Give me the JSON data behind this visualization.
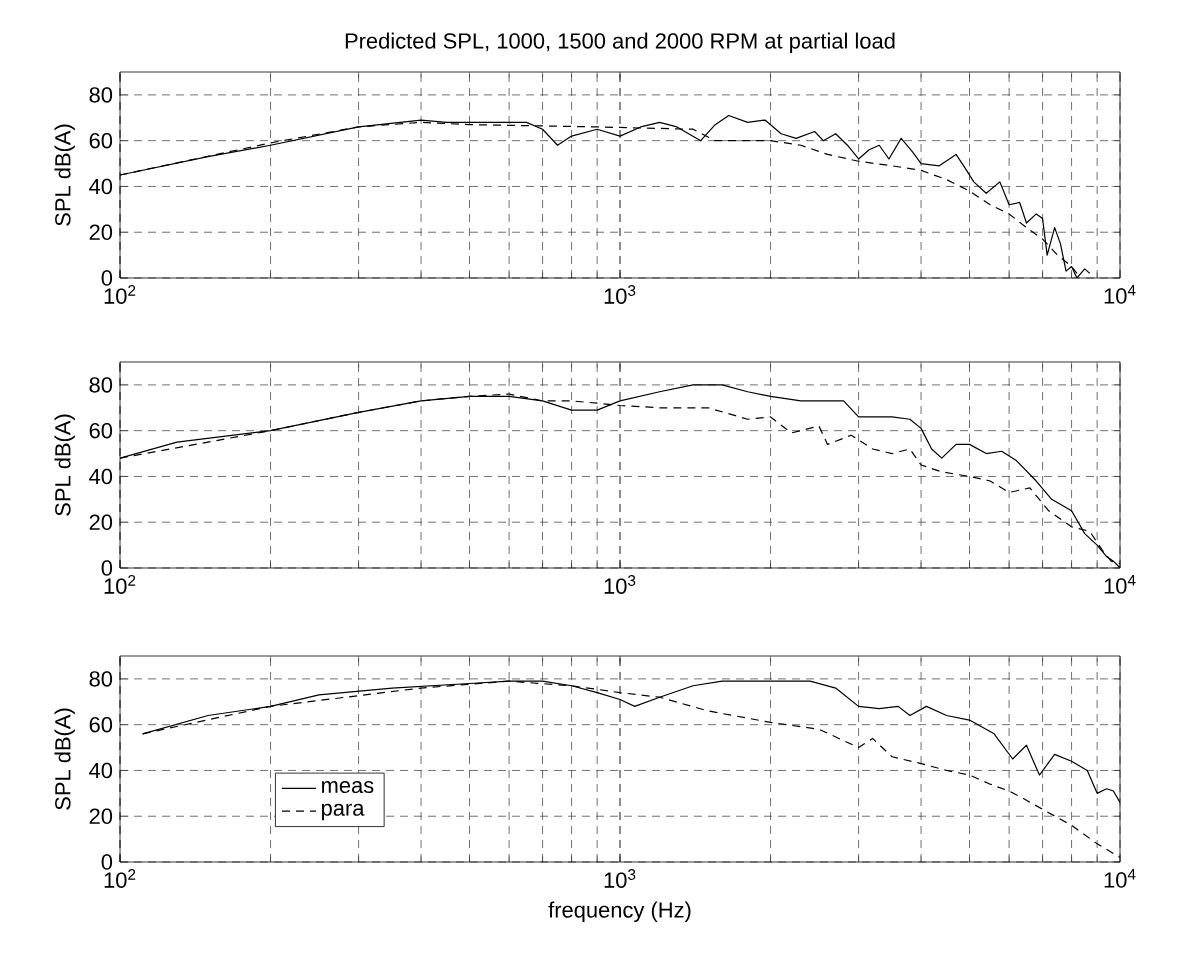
{
  "chart_data": [
    {
      "type": "line",
      "title": "Predicted SPL, 1000, 1500 and 2000 RPM at partial load",
      "ylabel": "SPL dB(A)",
      "log": "x",
      "grid": true,
      "xlim": [
        100,
        10000
      ],
      "ylim": [
        0,
        90
      ],
      "xticks": [
        {
          "value": 100,
          "label": "10$^{2}$"
        },
        {
          "value": 1000,
          "label": "10$^{3}$"
        },
        {
          "value": 10000,
          "label": "10$^{4}$"
        }
      ],
      "yticks": [
        0,
        20,
        40,
        60,
        80
      ],
      "series": [
        {
          "color": "#000000",
          "line_style": "solid",
          "x": [
            100,
            150,
            200,
            300,
            400,
            450,
            650,
            700,
            750,
            800,
            900,
            1000,
            1100,
            1200,
            1300,
            1450,
            1550,
            1650,
            1800,
            1950,
            2100,
            2250,
            2450,
            2550,
            2700,
            2850,
            3000,
            3150,
            3300,
            3450,
            3650,
            3850,
            4000,
            4350,
            4700,
            4900,
            5100,
            5400,
            5750,
            6000,
            6300,
            6500,
            6800,
            7000,
            7150,
            7400,
            7600,
            7800,
            8000,
            8200,
            8500,
            8700
          ],
          "values": [
            45,
            53,
            58,
            66,
            69,
            68,
            68,
            65,
            58,
            62,
            65,
            62,
            66,
            68,
            66,
            60,
            67,
            71,
            68,
            69,
            63,
            61,
            64,
            60,
            63,
            58,
            52,
            56,
            58,
            52,
            61,
            55,
            50,
            49,
            54,
            48,
            42,
            37,
            42,
            32,
            33,
            24,
            28,
            26,
            10,
            22,
            15,
            3,
            5,
            0,
            4,
            2
          ]
        },
        {
          "color": "#000000",
          "line_style": "dashed",
          "x": [
            100,
            200,
            300,
            400,
            500,
            900,
            1400,
            1550,
            2000,
            2300,
            2600,
            3000,
            3500,
            4000,
            4500,
            5000,
            5500,
            6000,
            6500,
            7000,
            7500,
            8000,
            8200
          ],
          "values": [
            45,
            59,
            66,
            68,
            67,
            66,
            65,
            60,
            60,
            58,
            54,
            51,
            49,
            47,
            43,
            38,
            32,
            28,
            22,
            17,
            10,
            5,
            2
          ]
        }
      ]
    },
    {
      "type": "line",
      "ylabel": "SPL dB(A)",
      "log": "x",
      "grid": true,
      "xlim": [
        100,
        10000
      ],
      "ylim": [
        0,
        90
      ],
      "xticks": [
        {
          "value": 100,
          "label": "10$^{2}$"
        },
        {
          "value": 1000,
          "label": "10$^{3}$"
        },
        {
          "value": 10000,
          "label": "10$^{4}$"
        }
      ],
      "yticks": [
        0,
        20,
        40,
        60,
        80
      ],
      "series": [
        {
          "color": "#000000",
          "line_style": "solid",
          "x": [
            100,
            130,
            200,
            300,
            400,
            500,
            600,
            700,
            800,
            900,
            1000,
            1200,
            1400,
            1600,
            1800,
            2000,
            2300,
            2800,
            3000,
            3500,
            3800,
            4000,
            4200,
            4400,
            4700,
            5000,
            5400,
            5800,
            6200,
            6800,
            7300,
            8000,
            8500,
            9000,
            9400,
            9700,
            10000
          ],
          "values": [
            48,
            55,
            60,
            68,
            73,
            75,
            75,
            73,
            69,
            69,
            73,
            77,
            80,
            80,
            77,
            75,
            73,
            73,
            66,
            66,
            65,
            61,
            52,
            48,
            54,
            54,
            50,
            51,
            47,
            38,
            30,
            25,
            15,
            10,
            5,
            3,
            0
          ]
        },
        {
          "color": "#000000",
          "line_style": "dashed",
          "x": [
            100,
            200,
            300,
            400,
            500,
            600,
            700,
            800,
            900,
            1000,
            1200,
            1500,
            1800,
            2000,
            2200,
            2500,
            2600,
            2900,
            3200,
            3500,
            3800,
            4000,
            4400,
            5000,
            5500,
            6000,
            6600,
            7200,
            8000,
            8700,
            9200,
            9600,
            10000
          ],
          "values": [
            48,
            60,
            68,
            73,
            75,
            76,
            73,
            73,
            72,
            71,
            70,
            70,
            65,
            66,
            59,
            62,
            54,
            58,
            52,
            50,
            52,
            45,
            42,
            40,
            38,
            33,
            35,
            25,
            18,
            16,
            8,
            3,
            2
          ]
        }
      ]
    },
    {
      "type": "line",
      "ylabel": "SPL dB(A)",
      "xlabel": "frequency (Hz)",
      "log": "x",
      "grid": true,
      "legend": "left",
      "xlim": [
        100,
        10000
      ],
      "ylim": [
        0,
        90
      ],
      "xticks": [
        {
          "value": 100,
          "label": "10$^{2}$"
        },
        {
          "value": 1000,
          "label": "10$^{3}$"
        },
        {
          "value": 10000,
          "label": "10$^{4}$"
        }
      ],
      "yticks": [
        0,
        20,
        40,
        60,
        80
      ],
      "series": [
        {
          "name": "meas",
          "color": "#000000",
          "line_style": "solid",
          "x": [
            111,
            150,
            200,
            250,
            350,
            500,
            600,
            700,
            800,
            900,
            1000,
            1070,
            1200,
            1400,
            1600,
            2000,
            2400,
            2700,
            3000,
            3300,
            3600,
            3800,
            4100,
            4500,
            5000,
            5600,
            6100,
            6500,
            6900,
            7400,
            8000,
            8600,
            9000,
            9400,
            9700,
            10000
          ],
          "values": [
            56,
            64,
            68,
            73,
            76,
            78,
            79,
            79,
            77,
            74,
            71,
            68,
            72,
            77,
            79,
            79,
            79,
            76,
            68,
            67,
            68,
            64,
            68,
            64,
            62,
            56,
            45,
            51,
            38,
            47,
            44,
            40,
            30,
            32,
            31,
            26
          ]
        },
        {
          "name": "para",
          "color": "#000000",
          "line_style": "dashed",
          "x": [
            111,
            200,
            400,
            600,
            800,
            1000,
            1200,
            1500,
            2000,
            2500,
            3000,
            3200,
            3500,
            4000,
            4500,
            5000,
            5500,
            6000,
            6500,
            7000,
            8000,
            9000,
            10000
          ],
          "values": [
            56,
            68,
            76,
            79,
            77,
            74,
            72,
            66,
            61,
            58,
            50,
            54,
            46,
            43,
            40,
            38,
            34,
            31,
            27,
            23,
            16,
            8,
            2
          ]
        }
      ]
    }
  ]
}
